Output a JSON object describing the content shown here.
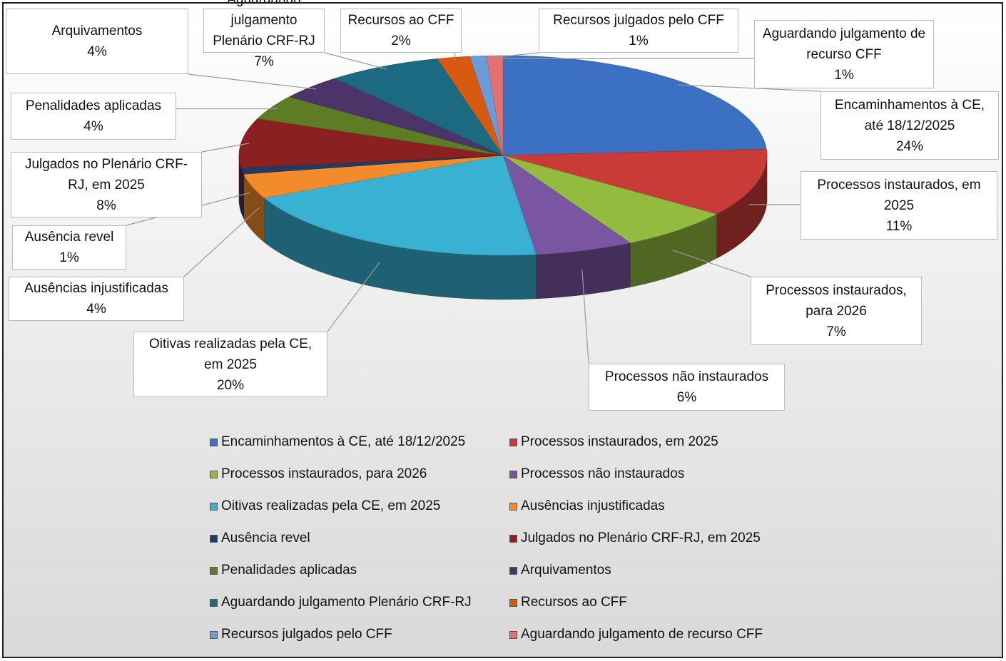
{
  "chart_data": {
    "type": "pie",
    "categories": [
      "Encaminhamentos à CE, até 18/12/2025",
      "Processos instaurados, em 2025",
      "Processos instaurados, para 2026",
      "Processos não instaurados",
      "Oitivas realizadas pela CE, em 2025",
      "Ausências injustificadas",
      "Ausência revel",
      "Julgados no Plenário CRF-RJ, em 2025",
      "Penalidades aplicadas",
      "Arquivamentos",
      "Aguardando julgamento Plenário CRF-RJ",
      "Recursos ao CFF",
      "Recursos julgados pelo CFF",
      "Aguardando julgamento de recurso CFF"
    ],
    "values": [
      24,
      11,
      7,
      6,
      20,
      4,
      1,
      8,
      4,
      4,
      7,
      2,
      1,
      1
    ],
    "value_labels": [
      "24%",
      "11%",
      "7%",
      "6%",
      "20%",
      "4%",
      "1%",
      "8%",
      "4%",
      "4%",
      "7%",
      "2%",
      "1%",
      "1%"
    ],
    "colors": [
      "#3b70c2",
      "#c93b39",
      "#92bb40",
      "#7a56a2",
      "#38b1d2",
      "#f28b2b",
      "#1f3c68",
      "#8b2020",
      "#5e7b26",
      "#4a3468",
      "#1b6a82",
      "#d85a12",
      "#6b9bd9",
      "#e27272"
    ],
    "legend": "bottom"
  }
}
